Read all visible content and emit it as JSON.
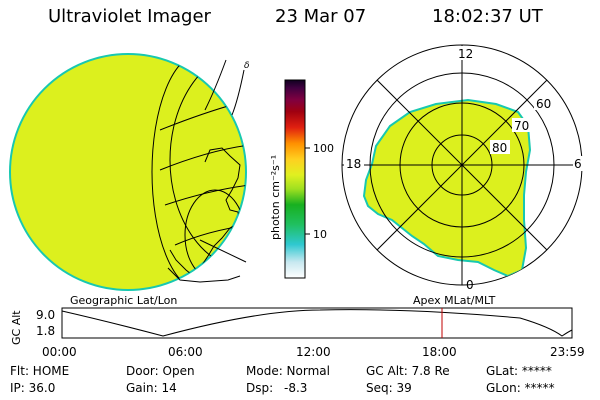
{
  "header": {
    "instrument": "Ultraviolet Imager",
    "date": "23 Mar 07",
    "time": "18:02:37 UT"
  },
  "colorbar": {
    "unit_label": "photon cm⁻²s⁻¹",
    "ticks": [
      "100",
      "10"
    ]
  },
  "polar": {
    "mlt_labels": [
      "12",
      "18",
      "6",
      "0"
    ],
    "lat_labels": [
      "60",
      "70",
      "80"
    ]
  },
  "map_labels": {
    "left": "Geographic Lat/Lon",
    "right": "Apex MLat/MLT"
  },
  "altitude_plot": {
    "axis_label": "GC Alt",
    "y_ticks": [
      "9.0",
      "1.8"
    ],
    "x_ticks": [
      "00:00",
      "06:00",
      "12:00",
      "18:00",
      "23:59"
    ],
    "current_time_marker": "18:02:37"
  },
  "info": {
    "flt": "Flt: HOME",
    "door": "Door: Open",
    "mode": "Mode: Normal",
    "gcalt": "GC Alt: 7.8 Re",
    "glat": "GLat: *****",
    "ip": "IP: 36.0",
    "gain": "Gain: 14",
    "dsp_label": "Dsp:",
    "dsp_value": "-8.3",
    "seq": "Seq: 39",
    "glon": "GLon: *****"
  },
  "colors": {
    "aurora_fill": "#dcf01e",
    "edge": "#18c8b0",
    "marker": "#c00000"
  }
}
